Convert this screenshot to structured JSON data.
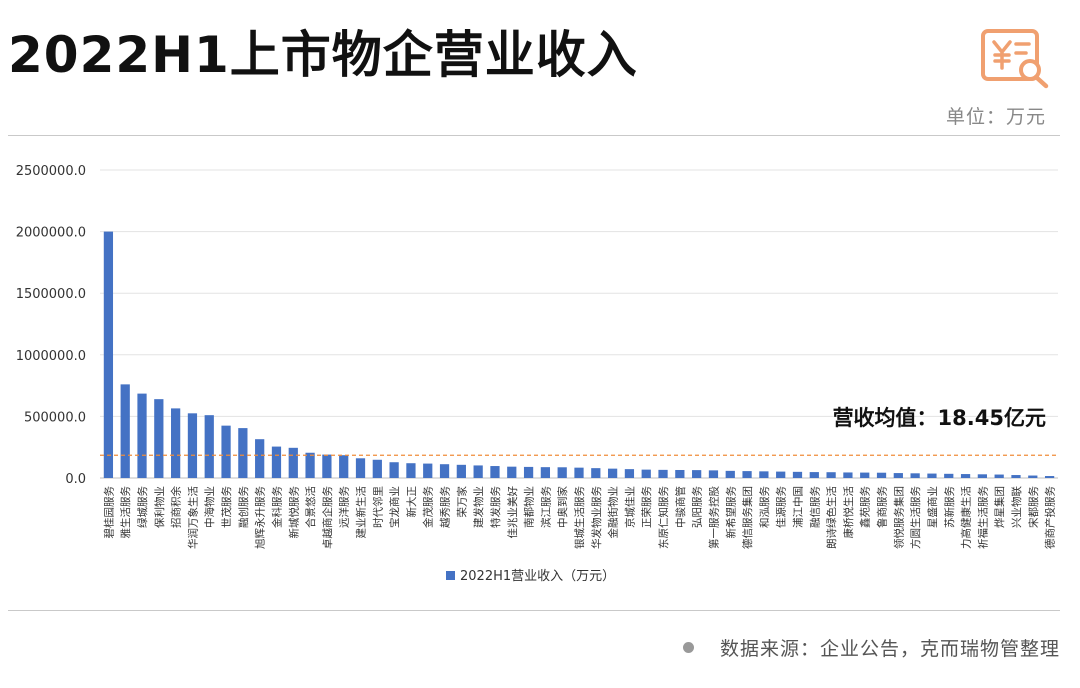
{
  "header": {
    "title": "2022H1上市物企营业收入",
    "unit": "单位：万元"
  },
  "footer": {
    "source": "数据来源：企业公告，克而瑞物管整理"
  },
  "colors": {
    "bar": "#4472c4",
    "average_line": "#f08c3a",
    "logo": "#f0a070"
  },
  "icons": [
    "finance-search-icon"
  ],
  "chart_data": {
    "type": "bar",
    "title": "",
    "xlabel": "",
    "ylabel": "",
    "ylim": [
      0,
      2500000
    ],
    "yticks": [
      "0.0",
      "500000.0",
      "1000000.0",
      "1500000.0",
      "2000000.0",
      "2500000.0"
    ],
    "grid": true,
    "legend_position": "bottom",
    "categories": [
      "碧桂园服务",
      "雅生活服务",
      "绿城服务",
      "保利物业",
      "招商积余",
      "华润万象生活",
      "中海物业",
      "世茂服务",
      "融创服务",
      "旭辉永升服务",
      "金科服务",
      "新城悦服务",
      "合景悠活",
      "卓越商企服务",
      "远洋服务",
      "建业新生活",
      "时代邻里",
      "宝龙商业",
      "新大正",
      "金茂服务",
      "越秀服务",
      "荣万家",
      "建发物业",
      "特发服务",
      "佳兆业美好",
      "南都物业",
      "滨江服务",
      "中奥到家",
      "银城生活服务",
      "华发物业服务",
      "金融街物业",
      "京城佳业",
      "正荣服务",
      "东原仁知服务",
      "中骏商管",
      "弘阳服务",
      "第一服务控股",
      "新希望服务",
      "德信服务集团",
      "和泓服务",
      "佳源服务",
      "浦江中国",
      "融信服务",
      "朗诗绿色生活",
      "康桥悦生活",
      "鑫苑服务",
      "鲁商服务",
      "领悦服务集团",
      "方圆生活服务",
      "星盛商业",
      "苏新服务",
      "力高健康生活",
      "祈福生活服务",
      "烨星集团",
      "兴业物联",
      "宋都服务",
      "德商产投服务"
    ],
    "series": [
      {
        "name": "2022H1营业收入（万元）",
        "values": [
          2000000,
          760000,
          685000,
          640000,
          565000,
          525000,
          510000,
          425000,
          405000,
          315000,
          255000,
          245000,
          205000,
          190000,
          185000,
          160000,
          148000,
          128000,
          120000,
          117000,
          112000,
          107000,
          102000,
          97000,
          92000,
          90000,
          88000,
          87000,
          84000,
          80000,
          76000,
          72000,
          68000,
          66000,
          65000,
          64000,
          62000,
          58000,
          56000,
          54000,
          52000,
          50000,
          48000,
          47000,
          45000,
          44000,
          43000,
          40000,
          38000,
          36000,
          34000,
          32000,
          30000,
          28000,
          24000,
          20000,
          16000
        ]
      }
    ],
    "annotations": [
      {
        "label": "营收均值：18.45亿元",
        "value": 184500,
        "style": "dashed"
      }
    ]
  }
}
